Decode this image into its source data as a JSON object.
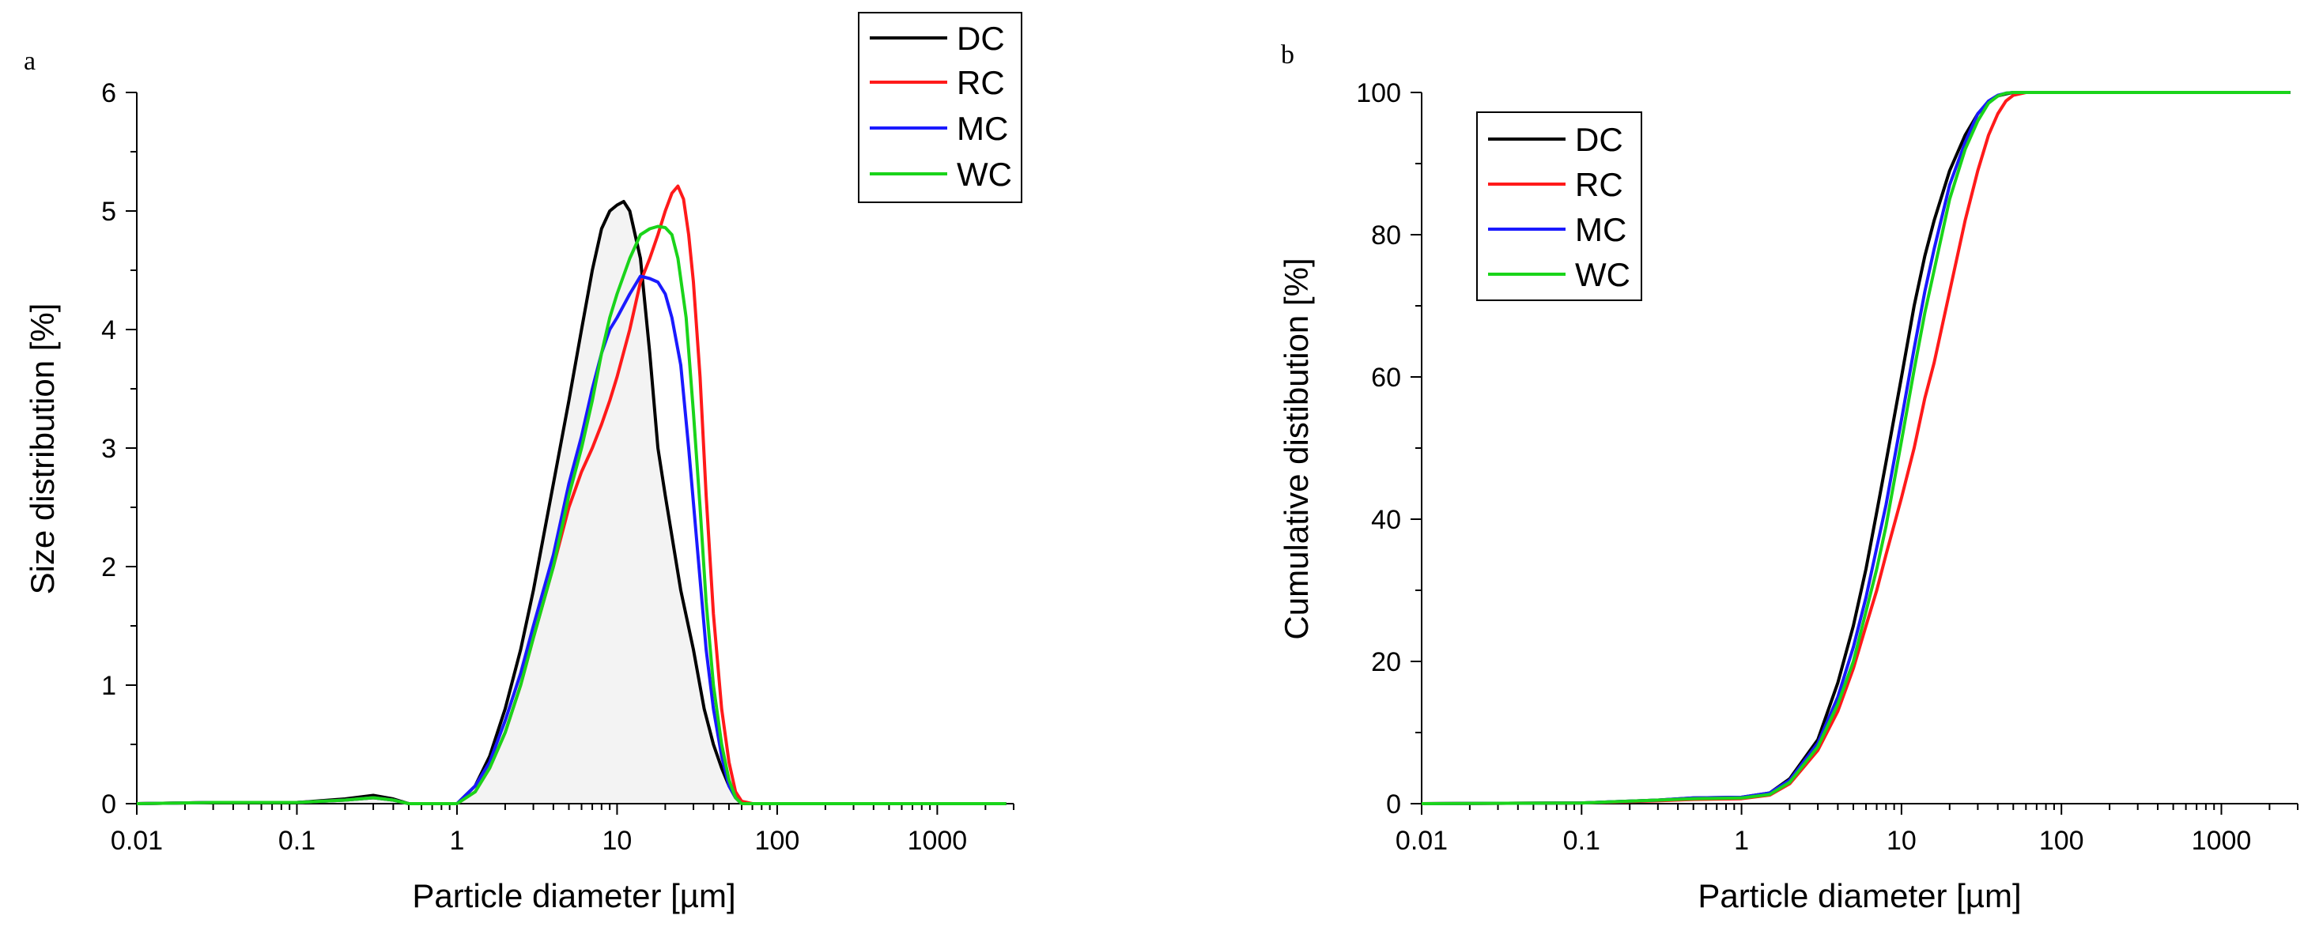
{
  "colors": {
    "DC": "#000000",
    "RC": "#ff1a1a",
    "MC": "#1a1aff",
    "WC": "#1ad41a",
    "fill": "#f3f3f3"
  },
  "chart_data": [
    {
      "type": "line",
      "panel_label": "a",
      "xlabel": "Particle diameter [µm]",
      "ylabel": "Size distribution [%]",
      "xscale": "log",
      "xlim": [
        0.01,
        3000
      ],
      "ylim": [
        0,
        6
      ],
      "x_ticks": [
        0.01,
        0.1,
        1,
        10,
        100,
        1000
      ],
      "x_tick_labels": [
        "0.01",
        "0.1",
        "1",
        "10",
        "100",
        "1000"
      ],
      "y_ticks": [
        0,
        1,
        2,
        3,
        4,
        5,
        6
      ],
      "y_tick_labels": [
        "0",
        "1",
        "2",
        "3",
        "4",
        "5",
        "6"
      ],
      "legend": [
        "DC",
        "RC",
        "MC",
        "WC"
      ],
      "legend_position": "top-right",
      "series": [
        {
          "name": "DC",
          "x": [
            0.01,
            0.03,
            0.1,
            0.2,
            0.3,
            0.4,
            0.5,
            1,
            1.3,
            1.6,
            2,
            2.5,
            3,
            4,
            5,
            6,
            7,
            8,
            9,
            10,
            11,
            12,
            14,
            16,
            18,
            20,
            25,
            30,
            35,
            40,
            45,
            50,
            55,
            60,
            70,
            100,
            1000,
            2700
          ],
          "y": [
            0,
            0.01,
            0.01,
            0.04,
            0.07,
            0.04,
            0,
            0,
            0.15,
            0.4,
            0.8,
            1.3,
            1.8,
            2.7,
            3.4,
            4.0,
            4.5,
            4.85,
            5.0,
            5.05,
            5.08,
            5.0,
            4.6,
            3.8,
            3.0,
            2.6,
            1.8,
            1.3,
            0.8,
            0.5,
            0.3,
            0.15,
            0.05,
            0,
            0,
            0,
            0,
            0
          ]
        },
        {
          "name": "RC",
          "x": [
            0.01,
            0.03,
            0.1,
            0.2,
            0.3,
            0.4,
            0.5,
            1,
            1.3,
            1.6,
            2,
            2.5,
            3,
            4,
            5,
            6,
            7,
            8,
            9,
            10,
            12,
            14,
            16,
            18,
            20,
            22,
            24,
            26,
            28,
            30,
            33,
            36,
            40,
            45,
            50,
            55,
            60,
            70,
            100,
            1000,
            2700
          ],
          "y": [
            0,
            0.01,
            0.01,
            0.03,
            0.05,
            0.03,
            0,
            0,
            0.1,
            0.3,
            0.6,
            1.0,
            1.4,
            2.0,
            2.5,
            2.8,
            3.0,
            3.2,
            3.4,
            3.6,
            4.0,
            4.4,
            4.6,
            4.8,
            5.0,
            5.15,
            5.21,
            5.1,
            4.8,
            4.4,
            3.6,
            2.6,
            1.6,
            0.8,
            0.35,
            0.1,
            0.02,
            0,
            0,
            0,
            0
          ]
        },
        {
          "name": "MC",
          "x": [
            0.01,
            0.03,
            0.1,
            0.2,
            0.3,
            0.4,
            0.5,
            1,
            1.3,
            1.6,
            2,
            2.5,
            3,
            4,
            5,
            6,
            7,
            8,
            9,
            10,
            12,
            14,
            16,
            18,
            20,
            22,
            25,
            28,
            32,
            36,
            40,
            45,
            50,
            55,
            60,
            70,
            100,
            1000,
            2700
          ],
          "y": [
            0,
            0.01,
            0.01,
            0.03,
            0.05,
            0.03,
            0,
            0,
            0.15,
            0.35,
            0.7,
            1.1,
            1.5,
            2.1,
            2.7,
            3.1,
            3.5,
            3.8,
            4.0,
            4.1,
            4.3,
            4.45,
            4.43,
            4.4,
            4.3,
            4.1,
            3.7,
            3.0,
            2.1,
            1.3,
            0.8,
            0.4,
            0.15,
            0.05,
            0,
            0,
            0,
            0,
            0
          ]
        },
        {
          "name": "WC",
          "x": [
            0.01,
            0.03,
            0.1,
            0.2,
            0.3,
            0.4,
            0.5,
            1,
            1.3,
            1.6,
            2,
            2.5,
            3,
            4,
            5,
            6,
            7,
            8,
            9,
            10,
            12,
            14,
            16,
            18,
            20,
            22,
            24,
            27,
            30,
            33,
            36,
            40,
            45,
            50,
            55,
            60,
            70,
            100,
            1000,
            2700
          ],
          "y": [
            0,
            0.01,
            0.01,
            0.03,
            0.05,
            0.03,
            0,
            0,
            0.1,
            0.3,
            0.6,
            1.0,
            1.4,
            2.0,
            2.6,
            3.0,
            3.4,
            3.8,
            4.1,
            4.3,
            4.6,
            4.8,
            4.85,
            4.87,
            4.86,
            4.8,
            4.6,
            4.1,
            3.3,
            2.5,
            1.7,
            1.0,
            0.5,
            0.2,
            0.05,
            0,
            0,
            0,
            0,
            0
          ]
        }
      ]
    },
    {
      "type": "line",
      "panel_label": "b",
      "xlabel": "Particle diameter [µm]",
      "ylabel": "Cumulative distibution [%]",
      "xscale": "log",
      "xlim": [
        0.01,
        3000
      ],
      "ylim": [
        0,
        100
      ],
      "x_ticks": [
        0.01,
        0.1,
        1,
        10,
        100,
        1000
      ],
      "x_tick_labels": [
        "0.01",
        "0.1",
        "1",
        "10",
        "100",
        "1000"
      ],
      "y_ticks": [
        0,
        20,
        40,
        60,
        80,
        100
      ],
      "y_tick_labels": [
        "0",
        "20",
        "40",
        "60",
        "80",
        "100"
      ],
      "legend": [
        "DC",
        "RC",
        "MC",
        "WC"
      ],
      "legend_position": "top-left",
      "series": [
        {
          "name": "DC",
          "x": [
            0.01,
            0.1,
            0.3,
            0.5,
            1,
            1.5,
            2,
            3,
            4,
            5,
            6,
            7,
            8,
            10,
            12,
            14,
            16,
            20,
            25,
            30,
            35,
            40,
            45,
            50,
            2700
          ],
          "y": [
            0,
            0.1,
            0.5,
            0.8,
            0.9,
            1.5,
            3.5,
            9,
            17,
            25,
            33,
            41,
            48,
            60,
            70,
            77,
            82,
            89,
            94,
            97,
            98.7,
            99.5,
            99.8,
            100,
            100
          ]
        },
        {
          "name": "RC",
          "x": [
            0.01,
            0.1,
            0.3,
            0.5,
            1,
            1.5,
            2,
            3,
            4,
            5,
            6,
            7,
            8,
            10,
            12,
            14,
            16,
            20,
            25,
            30,
            35,
            40,
            45,
            50,
            60,
            2700
          ],
          "y": [
            0,
            0.1,
            0.4,
            0.6,
            0.7,
            1.2,
            2.8,
            7.5,
            13,
            19,
            25,
            30,
            35,
            43,
            50,
            57,
            62,
            72,
            82,
            89,
            94,
            97,
            98.8,
            99.6,
            100,
            100
          ]
        },
        {
          "name": "MC",
          "x": [
            0.01,
            0.1,
            0.3,
            0.5,
            1,
            1.5,
            2,
            3,
            4,
            5,
            6,
            7,
            8,
            10,
            12,
            14,
            16,
            20,
            25,
            30,
            35,
            40,
            45,
            50,
            2700
          ],
          "y": [
            0,
            0.1,
            0.5,
            0.8,
            0.9,
            1.5,
            3.3,
            8.5,
            15,
            22,
            29,
            36,
            42,
            54,
            64,
            72,
            78,
            87,
            93,
            97,
            98.8,
            99.6,
            99.9,
            100,
            100
          ]
        },
        {
          "name": "WC",
          "x": [
            0.01,
            0.1,
            0.3,
            0.5,
            1,
            1.5,
            2,
            3,
            4,
            5,
            6,
            7,
            8,
            10,
            12,
            14,
            16,
            20,
            25,
            30,
            35,
            40,
            45,
            50,
            2700
          ],
          "y": [
            0,
            0.1,
            0.5,
            0.7,
            0.8,
            1.3,
            3.0,
            8,
            14,
            20,
            27,
            33,
            39,
            51,
            61,
            69,
            75,
            85,
            92,
            96,
            98.5,
            99.5,
            99.9,
            100,
            100
          ]
        }
      ]
    }
  ]
}
